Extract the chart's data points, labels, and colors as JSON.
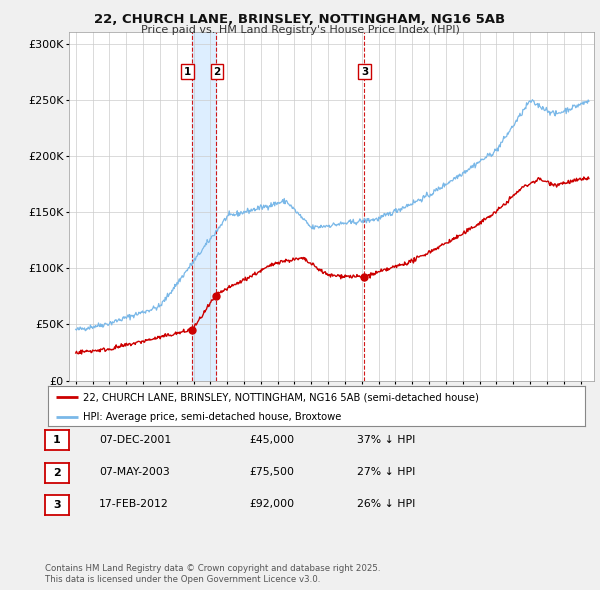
{
  "title": "22, CHURCH LANE, BRINSLEY, NOTTINGHAM, NG16 5AB",
  "subtitle": "Price paid vs. HM Land Registry's House Price Index (HPI)",
  "ylim": [
    0,
    310000
  ],
  "yticks": [
    0,
    50000,
    100000,
    150000,
    200000,
    250000,
    300000
  ],
  "hpi_color": "#7ab8e8",
  "price_color": "#cc0000",
  "vline_color": "#cc0000",
  "shade_color": "#ddeeff",
  "transactions": [
    {
      "date_num": 2001.93,
      "price": 45000,
      "label": "1"
    },
    {
      "date_num": 2003.35,
      "price": 75500,
      "label": "2"
    },
    {
      "date_num": 2012.12,
      "price": 92000,
      "label": "3"
    }
  ],
  "legend_property_label": "22, CHURCH LANE, BRINSLEY, NOTTINGHAM, NG16 5AB (semi-detached house)",
  "legend_hpi_label": "HPI: Average price, semi-detached house, Broxtowe",
  "table_rows": [
    {
      "num": "1",
      "date": "07-DEC-2001",
      "price": "£45,000",
      "hpi": "37% ↓ HPI"
    },
    {
      "num": "2",
      "date": "07-MAY-2003",
      "price": "£75,500",
      "hpi": "27% ↓ HPI"
    },
    {
      "num": "3",
      "date": "17-FEB-2012",
      "price": "£92,000",
      "hpi": "26% ↓ HPI"
    }
  ],
  "footnote1": "Contains HM Land Registry data © Crown copyright and database right 2025.",
  "footnote2": "This data is licensed under the Open Government Licence v3.0.",
  "background_color": "#f0f0f0",
  "plot_background": "#ffffff",
  "grid_color": "#cccccc",
  "xlim_left": 1994.6,
  "xlim_right": 2025.8
}
